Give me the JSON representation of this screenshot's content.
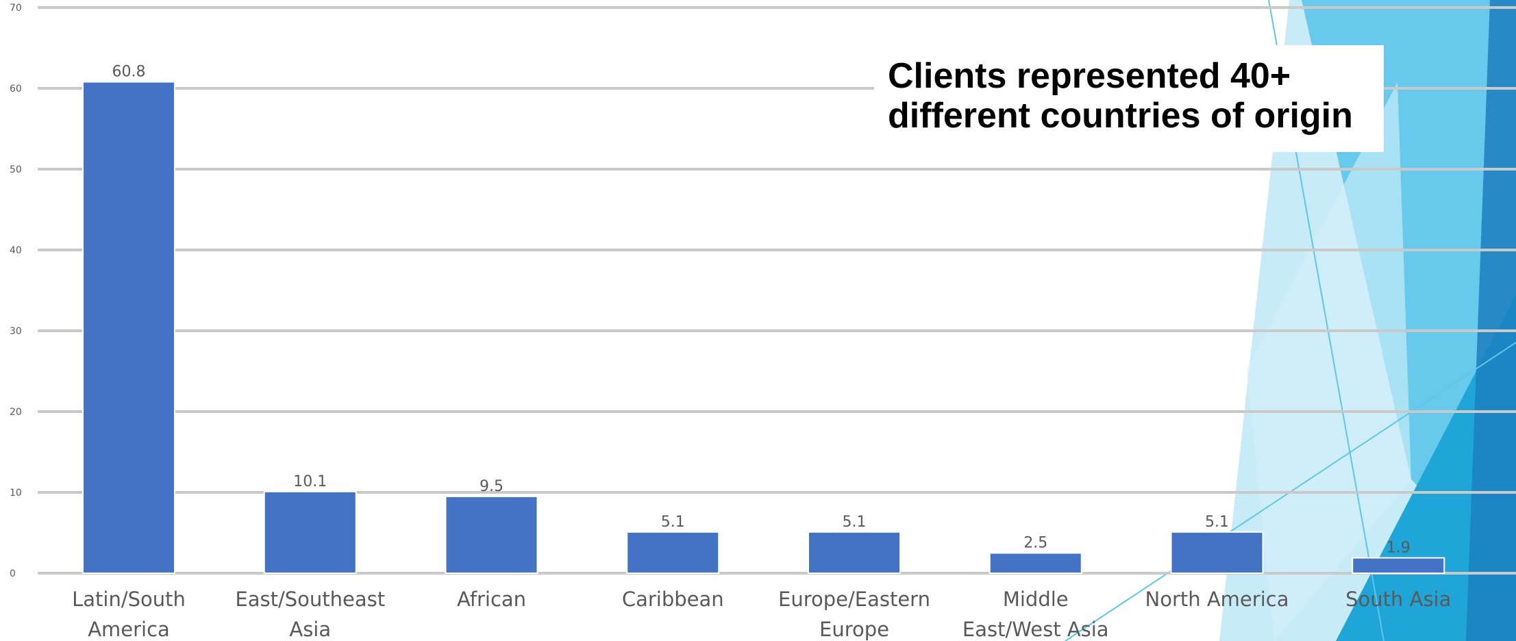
{
  "chart_data": {
    "type": "bar",
    "categories": [
      [
        "Latin/South",
        "America"
      ],
      [
        "East/Southeast",
        "Asia"
      ],
      [
        "African"
      ],
      [
        "Caribbean"
      ],
      [
        "Europe/Eastern",
        "Europe"
      ],
      [
        "Middle",
        "East/West Asia"
      ],
      [
        "North America"
      ],
      [
        "South Asia"
      ]
    ],
    "values": [
      60.8,
      10.1,
      9.5,
      5.1,
      5.1,
      2.5,
      5.1,
      1.9
    ],
    "value_labels": [
      "60.8",
      "10.1",
      "9.5",
      "5.1",
      "5.1",
      "2.5",
      "5.1",
      "1.9"
    ],
    "yticks": [
      "0",
      "10",
      "20",
      "30",
      "40",
      "50",
      "60",
      "70"
    ],
    "ylim": [
      0,
      70
    ],
    "grid": true,
    "legend": "none",
    "bar_color": "#4472C4",
    "title": "",
    "xlabel": "",
    "ylabel": ""
  },
  "callout": {
    "lines": [
      "Clients represented 40+",
      "different countries of origin"
    ]
  },
  "theme": {
    "gridline": "#C9C9C9",
    "axis_text": "#595959",
    "accent_light": "#BEE8F7",
    "accent_mid": "#5CC6EB",
    "accent_deep": "#1FA5D8",
    "accent_dark": "#1C7FBF"
  }
}
